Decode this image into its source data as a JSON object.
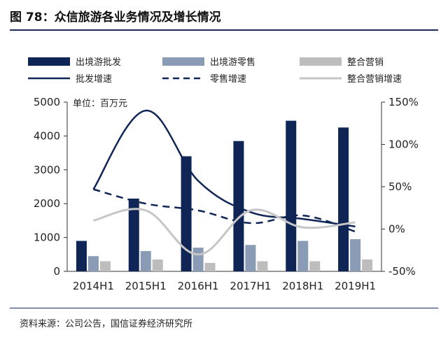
{
  "figure": {
    "title": "图 78：众信旅游各业务情况及增长情况",
    "source": "资料来源：公司公告，国信证券经济研究所"
  },
  "colors": {
    "wholesale": "#0f2555",
    "retail": "#8a9bb5",
    "integrated": "#bdbdbd",
    "wholesale_growth": "#0f2555",
    "retail_growth": "#0f2555",
    "integrated_growth": "#c6c6c6"
  },
  "chart_data": {
    "type": "bar",
    "unit_label": "单位：百万元",
    "categories": [
      "2014H1",
      "2015H1",
      "2016H1",
      "2017H1",
      "2018H1",
      "2019H1"
    ],
    "y_left": {
      "min": 0,
      "max": 5000,
      "ticks": [
        "0",
        "1000",
        "2000",
        "3000",
        "4000",
        "5000"
      ]
    },
    "y_right": {
      "min": -50,
      "max": 150,
      "ticks": [
        "-50%",
        "0%",
        "50%",
        "100%",
        "150%"
      ]
    },
    "grid": false,
    "legend_position": "top",
    "series": [
      {
        "name": "出境游批发",
        "kind": "bar",
        "axis": "left",
        "values": [
          900,
          2150,
          3400,
          3850,
          4450,
          4250
        ]
      },
      {
        "name": "出境游零售",
        "kind": "bar",
        "axis": "left",
        "values": [
          450,
          600,
          700,
          780,
          900,
          950
        ]
      },
      {
        "name": "整合营销",
        "kind": "bar",
        "axis": "left",
        "values": [
          300,
          350,
          250,
          300,
          300,
          350
        ]
      },
      {
        "name": "批发增速",
        "kind": "line",
        "style": "solid",
        "axis": "right",
        "values": [
          47,
          140,
          57,
          20,
          12,
          3
        ]
      },
      {
        "name": "零售增速",
        "kind": "line",
        "style": "dashed",
        "axis": "right",
        "values": [
          47,
          30,
          22,
          7,
          16,
          -3
        ]
      },
      {
        "name": "整合营销增速",
        "kind": "line",
        "style": "solid-light",
        "axis": "right",
        "values": [
          10,
          22,
          -30,
          22,
          2,
          8
        ]
      }
    ]
  }
}
